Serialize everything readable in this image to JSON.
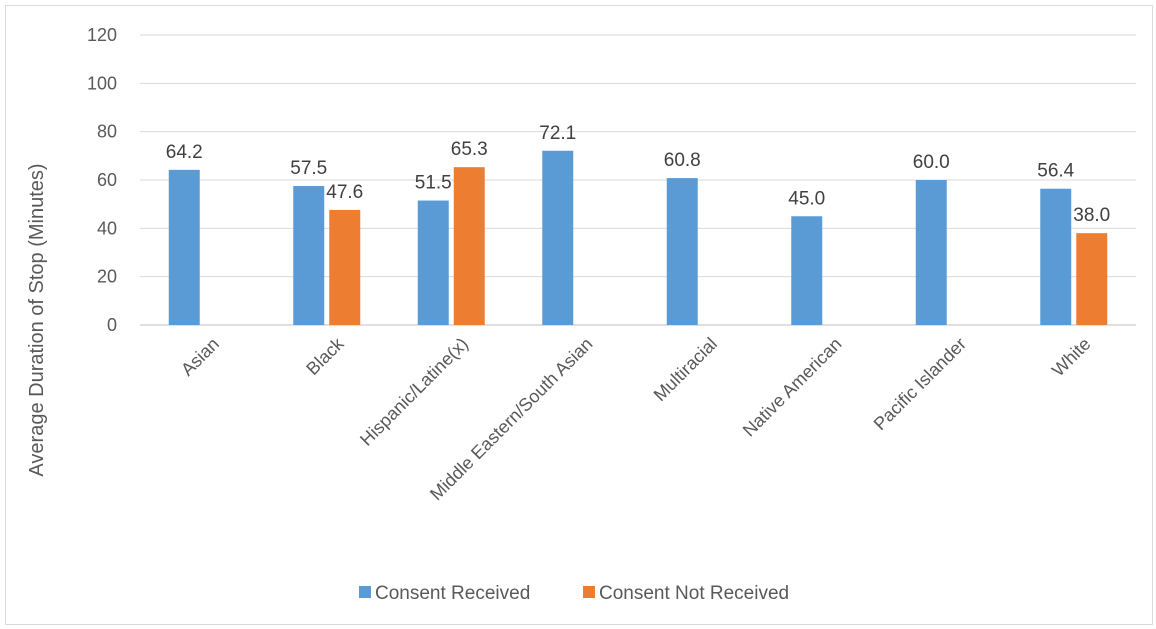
{
  "chart_data": {
    "type": "bar",
    "title": "",
    "xlabel": "",
    "ylabel": "Average Duration of Stop (Minutes)",
    "ylim": [
      0,
      120
    ],
    "yticks": [
      0,
      20,
      40,
      60,
      80,
      100,
      120
    ],
    "grid": true,
    "legend_position": "bottom",
    "categories": [
      "Asian",
      "Black",
      "Hispanic/Latine(x)",
      "Middle Eastern/South Asian",
      "Multiracial",
      "Native American",
      "Pacific Islander",
      "White"
    ],
    "series": [
      {
        "name": "Consent Received",
        "color": "#5b9bd5",
        "values": [
          64.2,
          57.5,
          51.5,
          72.1,
          60.8,
          45.0,
          60.0,
          56.4
        ]
      },
      {
        "name": "Consent Not Received",
        "color": "#ed7d31",
        "values": [
          null,
          47.6,
          65.3,
          null,
          null,
          null,
          null,
          38.0
        ]
      }
    ]
  }
}
